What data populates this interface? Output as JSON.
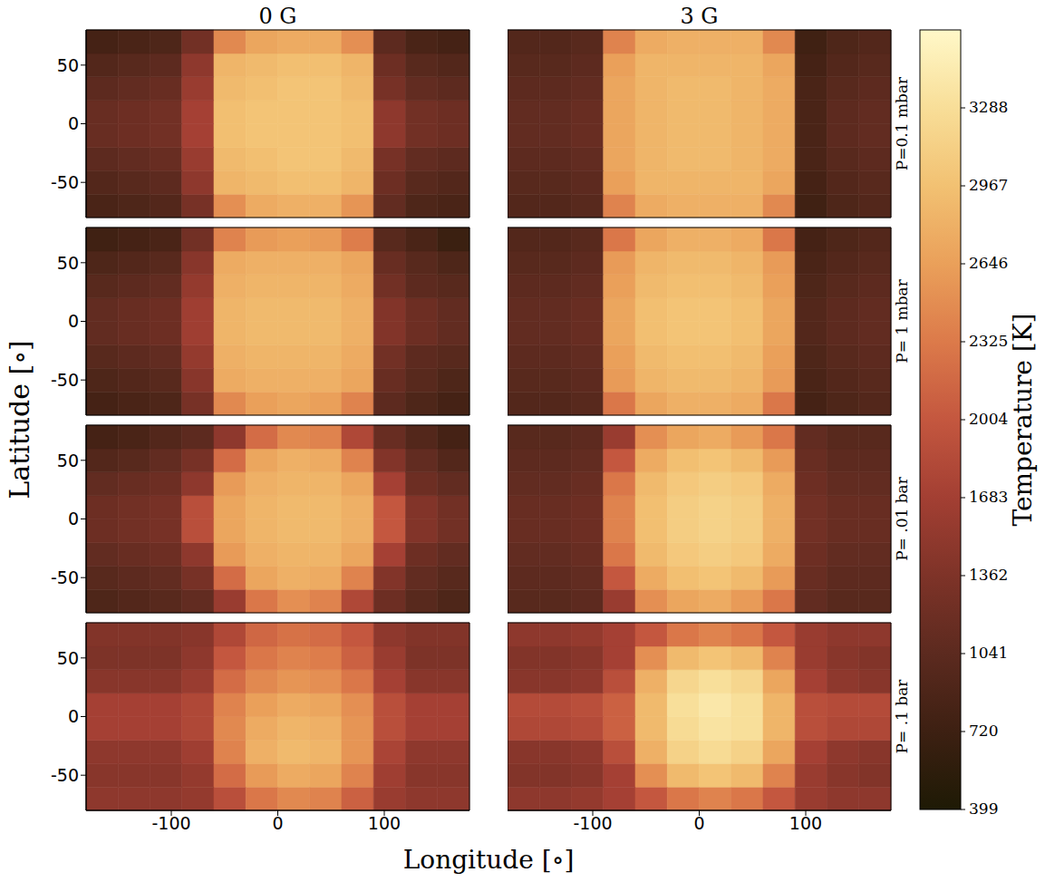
{
  "column_titles": [
    "0 G",
    "3 G"
  ],
  "row_labels": [
    "P=0.1 mbar",
    "P= 1 mbar",
    "P= .01 bar",
    "P= .1 bar"
  ],
  "xlabel": "Longitude [∘]",
  "ylabel": "Latitude [∘]",
  "colorbar": {
    "label": "Temperature [K]",
    "range": [
      399,
      3609
    ],
    "ticks": [
      399,
      720,
      1041,
      1362,
      1683,
      2004,
      2325,
      2646,
      2967,
      3288
    ]
  },
  "chart_data": [
    {
      "type": "heatmap",
      "tick_labels": "y",
      "xlim": [
        -180,
        180
      ],
      "ylim": [
        -80,
        80
      ],
      "xticks": [
        -100,
        0,
        100
      ],
      "yticks": [
        -50,
        0,
        50
      ],
      "x_edges": [
        -180,
        -150,
        -120,
        -90,
        -60,
        -30,
        0,
        30,
        60,
        90,
        120,
        150,
        180
      ],
      "y_edges": [
        -80,
        -60,
        -40,
        -20,
        0,
        20,
        40,
        60,
        80
      ],
      "cells": [
        [
          850,
          900,
          950,
          1300,
          2500,
          2750,
          2800,
          2800,
          2550,
          1100,
          900,
          850
        ],
        [
          950,
          1000,
          1050,
          1500,
          2850,
          2900,
          2950,
          2950,
          2850,
          1200,
          1000,
          950
        ],
        [
          1050,
          1100,
          1150,
          1600,
          2900,
          2950,
          3000,
          3000,
          2900,
          1300,
          1100,
          1050
        ],
        [
          1150,
          1200,
          1250,
          1700,
          2950,
          3000,
          3000,
          3000,
          2950,
          1500,
          1250,
          1200
        ],
        [
          1150,
          1200,
          1250,
          1700,
          2950,
          3000,
          3000,
          3000,
          2950,
          1500,
          1250,
          1200
        ],
        [
          1050,
          1100,
          1150,
          1600,
          2900,
          2950,
          3000,
          3000,
          2900,
          1300,
          1100,
          1050
        ],
        [
          950,
          1000,
          1050,
          1500,
          2850,
          2900,
          2950,
          2950,
          2850,
          1200,
          1000,
          950
        ],
        [
          800,
          850,
          900,
          1250,
          2450,
          2700,
          2750,
          2750,
          2500,
          1050,
          850,
          800
        ]
      ]
    },
    {
      "type": "heatmap",
      "tick_labels": false,
      "xlim": [
        -180,
        180
      ],
      "ylim": [
        -80,
        80
      ],
      "xticks": [
        -100,
        0,
        100
      ],
      "yticks": [
        -50,
        0,
        50
      ],
      "x_edges": [
        -180,
        -150,
        -120,
        -90,
        -60,
        -30,
        0,
        30,
        60,
        90,
        120,
        150,
        180
      ],
      "y_edges": [
        -80,
        -60,
        -40,
        -20,
        0,
        20,
        40,
        60,
        80
      ],
      "cells": [
        [
          950,
          950,
          1000,
          2400,
          2750,
          2800,
          2800,
          2800,
          2450,
          750,
          900,
          950
        ],
        [
          1000,
          1000,
          1050,
          2650,
          2850,
          2850,
          2850,
          2850,
          2700,
          800,
          950,
          1000
        ],
        [
          1050,
          1050,
          1100,
          2700,
          2850,
          2900,
          2900,
          2850,
          2750,
          850,
          1000,
          1050
        ],
        [
          1100,
          1100,
          1150,
          2700,
          2850,
          2900,
          2900,
          2850,
          2750,
          850,
          1050,
          1100
        ],
        [
          1100,
          1100,
          1150,
          2700,
          2850,
          2900,
          2900,
          2850,
          2750,
          850,
          1050,
          1100
        ],
        [
          1050,
          1050,
          1100,
          2700,
          2850,
          2900,
          2900,
          2850,
          2750,
          850,
          1000,
          1050
        ],
        [
          1000,
          1000,
          1050,
          2650,
          2850,
          2850,
          2850,
          2850,
          2700,
          800,
          950,
          1000
        ],
        [
          950,
          950,
          1000,
          2400,
          2750,
          2800,
          2800,
          2800,
          2450,
          750,
          900,
          950
        ]
      ]
    },
    {
      "type": "heatmap",
      "tick_labels": "y",
      "xlim": [
        -180,
        180
      ],
      "ylim": [
        -80,
        80
      ],
      "xticks": [
        -100,
        0,
        100
      ],
      "yticks": [
        -50,
        0,
        50
      ],
      "x_edges": [
        -180,
        -150,
        -120,
        -90,
        -60,
        -30,
        0,
        30,
        60,
        90,
        120,
        150,
        180
      ],
      "y_edges": [
        -80,
        -60,
        -40,
        -20,
        0,
        20,
        40,
        60,
        80
      ],
      "cells": [
        [
          800,
          850,
          900,
          1300,
          2450,
          2650,
          2700,
          2650,
          2400,
          1050,
          900,
          800
        ],
        [
          900,
          950,
          1000,
          1450,
          2750,
          2800,
          2800,
          2800,
          2700,
          1150,
          1000,
          900
        ],
        [
          1000,
          1050,
          1100,
          1550,
          2800,
          2850,
          2850,
          2850,
          2750,
          1250,
          1050,
          1000
        ],
        [
          1100,
          1150,
          1200,
          1650,
          2850,
          2900,
          2900,
          2900,
          2800,
          1400,
          1200,
          1100
        ],
        [
          1100,
          1150,
          1200,
          1650,
          2850,
          2900,
          2900,
          2900,
          2800,
          1400,
          1200,
          1100
        ],
        [
          1000,
          1050,
          1100,
          1550,
          2800,
          2850,
          2850,
          2850,
          2750,
          1250,
          1050,
          1000
        ],
        [
          900,
          950,
          1000,
          1450,
          2750,
          2800,
          2800,
          2800,
          2700,
          1150,
          1000,
          900
        ],
        [
          750,
          800,
          850,
          1250,
          2400,
          2600,
          2650,
          2600,
          2350,
          1000,
          850,
          700
        ]
      ]
    },
    {
      "type": "heatmap",
      "tick_labels": false,
      "xlim": [
        -180,
        180
      ],
      "ylim": [
        -80,
        80
      ],
      "xticks": [
        -100,
        0,
        100
      ],
      "yticks": [
        -50,
        0,
        50
      ],
      "x_edges": [
        -180,
        -150,
        -120,
        -90,
        -60,
        -30,
        0,
        30,
        60,
        90,
        120,
        150,
        180
      ],
      "y_edges": [
        -80,
        -60,
        -40,
        -20,
        0,
        20,
        40,
        60,
        80
      ],
      "cells": [
        [
          950,
          950,
          1000,
          2300,
          2700,
          2800,
          2800,
          2750,
          2300,
          800,
          900,
          950
        ],
        [
          1000,
          1000,
          1050,
          2600,
          2850,
          2900,
          2900,
          2850,
          2600,
          850,
          950,
          1000
        ],
        [
          1050,
          1050,
          1100,
          2650,
          2900,
          2950,
          2950,
          2900,
          2650,
          900,
          1000,
          1050
        ],
        [
          1100,
          1100,
          1150,
          2700,
          2950,
          3000,
          3000,
          2950,
          2700,
          950,
          1050,
          1100
        ],
        [
          1100,
          1100,
          1150,
          2700,
          2950,
          3000,
          3000,
          2950,
          2700,
          950,
          1050,
          1100
        ],
        [
          1050,
          1050,
          1100,
          2650,
          2900,
          2950,
          2950,
          2900,
          2650,
          900,
          1000,
          1050
        ],
        [
          1000,
          1000,
          1050,
          2600,
          2850,
          2900,
          2900,
          2850,
          2600,
          850,
          950,
          1000
        ],
        [
          950,
          950,
          1000,
          2300,
          2700,
          2800,
          2800,
          2750,
          2300,
          800,
          900,
          950
        ]
      ]
    },
    {
      "type": "heatmap",
      "tick_labels": "y",
      "xlim": [
        -180,
        180
      ],
      "ylim": [
        -80,
        80
      ],
      "xticks": [
        -100,
        0,
        100
      ],
      "yticks": [
        -50,
        0,
        50
      ],
      "x_edges": [
        -180,
        -150,
        -120,
        -90,
        -60,
        -30,
        0,
        30,
        60,
        90,
        120,
        150,
        180
      ],
      "y_edges": [
        -80,
        -60,
        -40,
        -20,
        0,
        20,
        40,
        60,
        80
      ],
      "cells": [
        [
          900,
          950,
          1000,
          1100,
          1600,
          2300,
          2500,
          2400,
          1800,
          1200,
          1000,
          900
        ],
        [
          1000,
          1050,
          1100,
          1300,
          2200,
          2700,
          2800,
          2750,
          2400,
          1400,
          1100,
          1000
        ],
        [
          1100,
          1150,
          1200,
          1500,
          2600,
          2800,
          2850,
          2850,
          2700,
          1700,
          1200,
          1100
        ],
        [
          1200,
          1250,
          1300,
          1900,
          2700,
          2850,
          2900,
          2900,
          2800,
          2000,
          1400,
          1250
        ],
        [
          1200,
          1250,
          1300,
          1900,
          2700,
          2850,
          2900,
          2900,
          2800,
          2000,
          1400,
          1250
        ],
        [
          1100,
          1150,
          1200,
          1500,
          2600,
          2800,
          2850,
          2850,
          2700,
          1700,
          1200,
          1100
        ],
        [
          950,
          1000,
          1100,
          1300,
          2200,
          2700,
          2800,
          2750,
          2400,
          1400,
          1100,
          950
        ],
        [
          800,
          850,
          950,
          1050,
          1500,
          2200,
          2450,
          2400,
          1800,
          1150,
          950,
          800
        ]
      ]
    },
    {
      "type": "heatmap",
      "tick_labels": false,
      "xlim": [
        -180,
        180
      ],
      "ylim": [
        -80,
        80
      ],
      "xticks": [
        -100,
        0,
        100
      ],
      "yticks": [
        -50,
        0,
        50
      ],
      "x_edges": [
        -180,
        -150,
        -120,
        -90,
        -60,
        -30,
        0,
        30,
        60,
        90,
        120,
        150,
        180
      ],
      "y_edges": [
        -80,
        -60,
        -40,
        -20,
        0,
        20,
        40,
        60,
        80
      ],
      "cells": [
        [
          1000,
          1000,
          1050,
          1600,
          2500,
          2700,
          2750,
          2600,
          2300,
          1100,
          1000,
          1000
        ],
        [
          1050,
          1050,
          1100,
          2000,
          2750,
          2950,
          3000,
          2900,
          2600,
          1150,
          1050,
          1050
        ],
        [
          1100,
          1100,
          1150,
          2300,
          2900,
          3050,
          3100,
          3050,
          2750,
          1200,
          1100,
          1100
        ],
        [
          1150,
          1150,
          1200,
          2400,
          2950,
          3100,
          3150,
          3100,
          2800,
          1250,
          1150,
          1150
        ],
        [
          1150,
          1150,
          1200,
          2400,
          2950,
          3100,
          3150,
          3100,
          2800,
          1250,
          1150,
          1150
        ],
        [
          1100,
          1100,
          1150,
          2300,
          2900,
          3050,
          3100,
          3050,
          2750,
          1200,
          1100,
          1100
        ],
        [
          1050,
          1050,
          1100,
          2000,
          2750,
          2950,
          3000,
          2900,
          2600,
          1150,
          1050,
          1050
        ],
        [
          1000,
          1000,
          1050,
          1600,
          2500,
          2700,
          2750,
          2600,
          2300,
          1100,
          1000,
          1000
        ]
      ]
    },
    {
      "type": "heatmap",
      "tick_labels": true,
      "xlim": [
        -180,
        180
      ],
      "ylim": [
        -80,
        80
      ],
      "xticks": [
        -100,
        0,
        100
      ],
      "yticks": [
        -50,
        0,
        50
      ],
      "x_edges": [
        -180,
        -150,
        -120,
        -90,
        -60,
        -30,
        0,
        30,
        60,
        90,
        120,
        150,
        180
      ],
      "y_edges": [
        -80,
        -60,
        -40,
        -20,
        0,
        20,
        40,
        60,
        80
      ],
      "cells": [
        [
          1500,
          1500,
          1500,
          1550,
          1900,
          2300,
          2450,
          2400,
          2100,
          1600,
          1500,
          1500
        ],
        [
          1450,
          1450,
          1450,
          1550,
          2200,
          2600,
          2750,
          2700,
          2400,
          1650,
          1450,
          1450
        ],
        [
          1500,
          1500,
          1500,
          1650,
          2400,
          2800,
          2900,
          2850,
          2550,
          1750,
          1500,
          1500
        ],
        [
          1700,
          1700,
          1700,
          1800,
          2450,
          2750,
          2850,
          2800,
          2550,
          1900,
          1700,
          1700
        ],
        [
          1700,
          1700,
          1700,
          1800,
          2400,
          2650,
          2750,
          2700,
          2500,
          1900,
          1700,
          1700
        ],
        [
          1450,
          1450,
          1450,
          1600,
          2200,
          2450,
          2550,
          2500,
          2300,
          1700,
          1450,
          1450
        ],
        [
          1350,
          1350,
          1350,
          1500,
          2000,
          2300,
          2400,
          2350,
          2100,
          1600,
          1350,
          1350
        ],
        [
          1400,
          1400,
          1400,
          1450,
          1800,
          2150,
          2250,
          2200,
          2000,
          1500,
          1400,
          1400
        ]
      ]
    },
    {
      "type": "heatmap",
      "tick_labels": "x",
      "xlim": [
        -180,
        180
      ],
      "ylim": [
        -80,
        80
      ],
      "xticks": [
        -100,
        0,
        100
      ],
      "yticks": [
        -50,
        0,
        50
      ],
      "x_edges": [
        -180,
        -150,
        -120,
        -90,
        -60,
        -30,
        0,
        30,
        60,
        90,
        120,
        150,
        180
      ],
      "y_edges": [
        -80,
        -60,
        -40,
        -20,
        0,
        20,
        40,
        60,
        80
      ],
      "cells": [
        [
          1500,
          1500,
          1550,
          1700,
          2000,
          2300,
          2400,
          2300,
          2000,
          1600,
          1500,
          1500
        ],
        [
          1400,
          1400,
          1450,
          1700,
          2500,
          2900,
          3000,
          2900,
          2400,
          1600,
          1450,
          1400
        ],
        [
          1450,
          1450,
          1500,
          1900,
          2800,
          3150,
          3250,
          3150,
          2700,
          1700,
          1500,
          1450
        ],
        [
          1800,
          1800,
          1850,
          2100,
          2900,
          3250,
          3350,
          3300,
          2850,
          1900,
          1800,
          1800
        ],
        [
          1850,
          1850,
          1900,
          2100,
          2900,
          3300,
          3400,
          3300,
          2850,
          1900,
          1850,
          1850
        ],
        [
          1450,
          1450,
          1500,
          1900,
          2800,
          3200,
          3300,
          3200,
          2700,
          1700,
          1500,
          1450
        ],
        [
          1400,
          1400,
          1450,
          1700,
          2500,
          2900,
          3000,
          2900,
          2400,
          1600,
          1450,
          1400
        ],
        [
          1500,
          1500,
          1550,
          1700,
          2000,
          2300,
          2400,
          2300,
          2000,
          1600,
          1500,
          1500
        ]
      ]
    }
  ]
}
